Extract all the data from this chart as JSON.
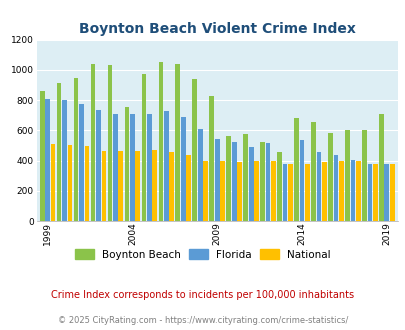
{
  "title": "Boynton Beach Violent Crime Index",
  "subtitle": "Crime Index corresponds to incidents per 100,000 inhabitants",
  "footer": "© 2025 CityRating.com - https://www.cityrating.com/crime-statistics/",
  "years": [
    1999,
    2000,
    2001,
    2002,
    2003,
    2004,
    2005,
    2006,
    2007,
    2008,
    2009,
    2010,
    2011,
    2012,
    2013,
    2014,
    2015,
    2016,
    2017,
    2018,
    2019
  ],
  "boynton_beach": [
    860,
    910,
    945,
    1040,
    1035,
    755,
    975,
    1050,
    1040,
    940,
    825,
    565,
    575,
    520,
    460,
    680,
    655,
    580,
    600,
    605,
    710
  ],
  "florida": [
    810,
    800,
    775,
    735,
    710,
    710,
    710,
    730,
    690,
    610,
    545,
    520,
    490,
    515,
    380,
    535,
    460,
    435,
    405,
    380,
    380
  ],
  "national": [
    510,
    500,
    495,
    465,
    465,
    465,
    470,
    460,
    435,
    395,
    400,
    390,
    395,
    395,
    375,
    380,
    390,
    395,
    395,
    375,
    380
  ],
  "bar_colors": {
    "boynton_beach": "#8bc34a",
    "florida": "#5b9bd5",
    "national": "#ffc000"
  },
  "ylim": [
    0,
    1200
  ],
  "yticks": [
    0,
    200,
    400,
    600,
    800,
    1000,
    1200
  ],
  "xtick_years": [
    1999,
    2004,
    2009,
    2014,
    2019
  ],
  "plot_bg": "#ddeef4",
  "title_color": "#1f4e79",
  "subtitle_color": "#c00000",
  "footer_color": "#808080",
  "legend_labels": [
    "Boynton Beach",
    "Florida",
    "National"
  ],
  "title_fontsize": 10,
  "subtitle_fontsize": 7.0,
  "footer_fontsize": 6.0
}
